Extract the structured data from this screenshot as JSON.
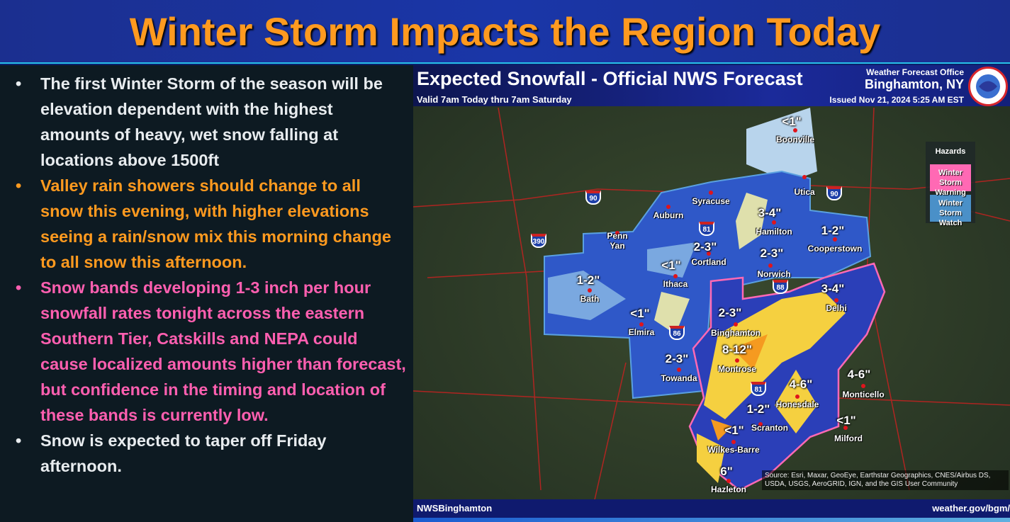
{
  "title": "Winter Storm Impacts the Region Today",
  "bullets": [
    {
      "text": "The first Winter Storm of the season will be elevation dependent with the highest amounts of heavy, wet snow falling at locations above 1500ft",
      "color": "#e8ecef"
    },
    {
      "text": "Valley rain showers should change to all snow this evening, with higher elevations seeing a rain/snow mix this morning change to all snow this afternoon.",
      "color": "#ff9a1f"
    },
    {
      "text": "Snow bands developing 1-3 inch per hour snowfall rates tonight across the eastern Southern Tier, Catskills and NEPA could cause localized amounts higher than forecast, but confidence in the timing and location of these bands is currently low.",
      "color": "#ff5fb0"
    },
    {
      "text": "Snow is expected to taper off Friday afternoon.",
      "color": "#e8ecef"
    }
  ],
  "map": {
    "title": "Expected Snowfall - Official NWS Forecast",
    "valid": "Valid 7am Today thru 7am Saturday",
    "office_label": "Weather Forecast Office",
    "office_city": "Binghamton, NY",
    "issued": "Issued Nov 21, 2024 5:25 AM EST",
    "legend": {
      "title": "Hazards",
      "items": [
        {
          "label": "Winter Storm Warning",
          "color": "#ff69b4"
        },
        {
          "label": "Winter Storm Watch",
          "color": "#4a90c8"
        }
      ]
    },
    "cities": [
      "Boonville",
      "Utica",
      "Syracuse",
      "Auburn",
      "Hamilton",
      "Cooperstown",
      "Norwich",
      "Cortland",
      "Penn Yan",
      "Ithaca",
      "Bath",
      "Delhi",
      "Binghamton",
      "Elmira",
      "Montrose",
      "Towanda",
      "Monticello",
      "Honesdale",
      "Scranton",
      "Wilkes-Barre",
      "Milford",
      "Hazleton"
    ],
    "amounts": [
      "<1\"",
      "3-4\"",
      "1-2\"",
      "2-3\"",
      "2-3\"",
      "<1\"",
      "1-2\"",
      "3-4\"",
      "2-3\"",
      "<1\"",
      "8-12\"",
      "2-3\"",
      "4-6\"",
      "4-6\"",
      "1-2\"",
      "<1\"",
      "<1\"",
      "6\""
    ],
    "interstates": [
      "90",
      "90",
      "390",
      "81",
      "88",
      "86",
      "81"
    ],
    "source": "Source: Esri, Maxar, GeoEye, Earthstar Geographics, CNES/Airbus DS, USDA, USGS, AeroGRID, IGN, and the GIS User Community",
    "footer_left": "NWSBinghamton",
    "footer_right": "weather.gov/bgm/"
  }
}
